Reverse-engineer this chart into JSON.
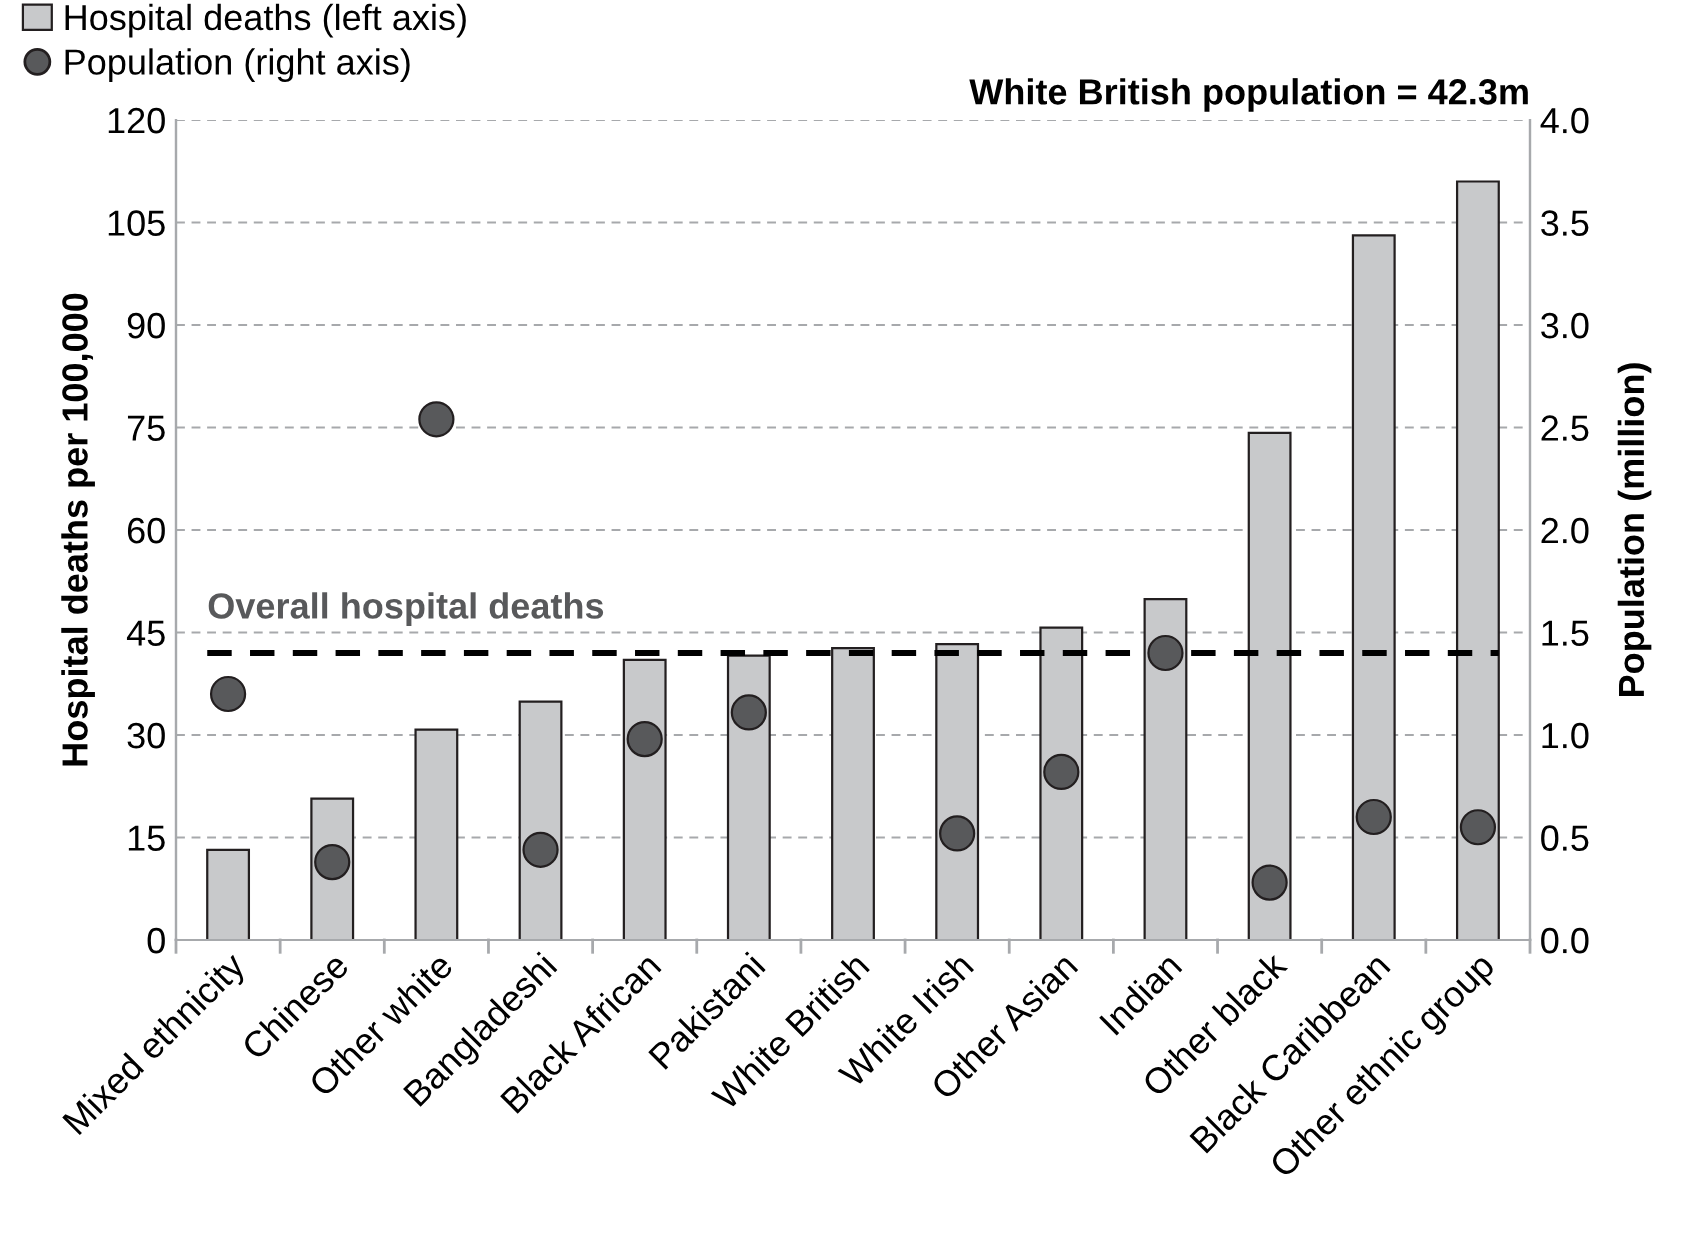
{
  "chart_data": {
    "type": "bar",
    "categories": [
      "Mixed ethnicity",
      "Chinese",
      "Other white",
      "Bangladeshi",
      "Black African",
      "Pakistani",
      "White British",
      "White Irish",
      "Other Asian",
      "Indian",
      "Other black",
      "Black Caribbean",
      "Other ethnic group"
    ],
    "series": [
      {
        "name": "Hospital deaths (left axis)",
        "color": "#c8c9cb",
        "values": [
          13.2,
          20.7,
          30.8,
          34.9,
          41.0,
          41.6,
          42.7,
          43.3,
          45.7,
          49.9,
          74.2,
          103.1,
          111.0
        ]
      },
      {
        "name": "Population (right axis)",
        "type": "scatter",
        "axis": "y2",
        "color": "#58595b",
        "marker": "circle",
        "values": [
          1.2,
          0.38,
          2.54,
          0.44,
          0.98,
          1.11,
          null,
          0.52,
          0.82,
          1.4,
          0.28,
          0.6,
          0.55
        ]
      }
    ],
    "ylabel": "Hospital deaths per 100,000",
    "y2label": "Population (million)",
    "ylim": [
      0,
      120
    ],
    "yticks": [
      0,
      15,
      30,
      45,
      60,
      75,
      90,
      105,
      120
    ],
    "y2lim": [
      0,
      4.0
    ],
    "y2ticks": [
      {
        "value": 0,
        "label": "0.0"
      },
      {
        "value": 0.5,
        "label": "0.5"
      },
      {
        "value": 1.0,
        "label": "1.0"
      },
      {
        "value": 1.5,
        "label": "1.5"
      },
      {
        "value": 2.0,
        "label": "2.0"
      },
      {
        "value": 2.5,
        "label": "2.5"
      },
      {
        "value": 3.0,
        "label": "3.0"
      },
      {
        "value": 3.5,
        "label": "3.5"
      },
      {
        "value": 4.0,
        "label": "4.0"
      }
    ],
    "ref_lines": [
      {
        "axis": "y",
        "value": 42.0,
        "label": "Overall hospital deaths",
        "color": "#000000",
        "line_style": "dashed"
      }
    ],
    "annotations": [
      "White British population = 42.3m"
    ],
    "grid": "y",
    "legend": "top left"
  }
}
